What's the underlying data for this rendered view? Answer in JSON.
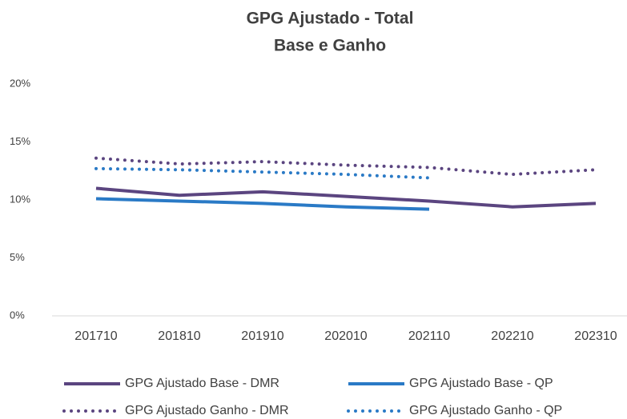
{
  "chart_data": {
    "type": "line",
    "title": "GPG Ajustado - Total",
    "subtitle": "Base e Ganho",
    "categories": [
      "201710",
      "201810",
      "201910",
      "202010",
      "202110",
      "202210",
      "202310"
    ],
    "series": [
      {
        "name": "GPG Ajustado Base - DMR",
        "color": "#5b4580",
        "dash": "solid",
        "values": [
          11.0,
          10.4,
          10.7,
          10.3,
          9.9,
          9.4,
          9.7
        ]
      },
      {
        "name": "GPG Ajustado Base - QP",
        "color": "#2a7ac6",
        "dash": "solid",
        "values": [
          10.1,
          9.9,
          9.7,
          9.4,
          9.2,
          null,
          null
        ]
      },
      {
        "name": "GPG Ajustado Ganho - DMR",
        "color": "#5b4580",
        "dash": "dotted",
        "values": [
          13.6,
          13.1,
          13.3,
          13.0,
          12.8,
          12.2,
          12.6
        ]
      },
      {
        "name": "GPG Ajustado Ganho - QP",
        "color": "#2a7ac6",
        "dash": "dotted",
        "values": [
          12.7,
          12.6,
          12.4,
          12.2,
          11.9,
          null,
          null
        ]
      }
    ],
    "ylim": [
      0,
      20
    ],
    "yticks": [
      {
        "value": 0,
        "label": "0%"
      },
      {
        "value": 5,
        "label": "5%"
      },
      {
        "value": 10,
        "label": "10%"
      },
      {
        "value": 15,
        "label": "15%"
      },
      {
        "value": 20,
        "label": "20%"
      }
    ],
    "grid": false,
    "legend": "bottom"
  }
}
